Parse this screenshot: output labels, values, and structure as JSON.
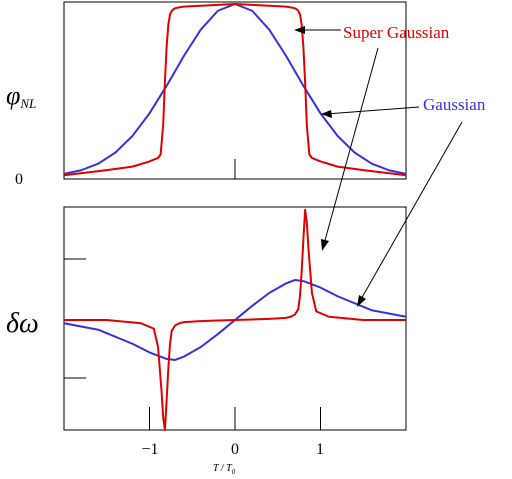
{
  "chart_data": [
    {
      "type": "line",
      "ylabel": "φNL",
      "ylabel_main": "φ",
      "ylabel_sub": "NL",
      "y_tick_labels": [
        "0"
      ],
      "xlim": [
        -2,
        2
      ],
      "ylim": [
        0,
        1.0
      ],
      "grid": false,
      "series": [
        {
          "name": "Super Gaussian",
          "color": "#e00000",
          "x": [
            -2.0,
            -1.5,
            -1.2,
            -1.0,
            -0.9,
            -0.87,
            -0.84,
            -0.82,
            -0.8,
            -0.78,
            -0.76,
            -0.74,
            -0.72,
            -0.7,
            -0.66,
            -0.6,
            -0.4,
            -0.2,
            0.0,
            0.2,
            0.4,
            0.6,
            0.66,
            0.7,
            0.72,
            0.74,
            0.76,
            0.78,
            0.8,
            0.82,
            0.84,
            0.87,
            0.9,
            1.0,
            1.2,
            1.5,
            2.0
          ],
          "y": [
            0.01,
            0.04,
            0.06,
            0.09,
            0.11,
            0.13,
            0.3,
            0.55,
            0.75,
            0.88,
            0.94,
            0.96,
            0.97,
            0.975,
            0.98,
            0.985,
            0.99,
            0.995,
            1.0,
            0.995,
            0.99,
            0.985,
            0.98,
            0.975,
            0.97,
            0.96,
            0.94,
            0.88,
            0.75,
            0.55,
            0.3,
            0.13,
            0.11,
            0.09,
            0.06,
            0.04,
            0.01
          ]
        },
        {
          "name": "Gaussian",
          "color": "#3333dd",
          "x": [
            -2.0,
            -1.8,
            -1.6,
            -1.4,
            -1.2,
            -1.0,
            -0.8,
            -0.6,
            -0.4,
            -0.2,
            0.0,
            0.2,
            0.4,
            0.6,
            0.8,
            1.0,
            1.2,
            1.4,
            1.6,
            1.8,
            2.0
          ],
          "y": [
            0.018,
            0.039,
            0.077,
            0.141,
            0.237,
            0.368,
            0.527,
            0.698,
            0.852,
            0.961,
            1.0,
            0.961,
            0.852,
            0.698,
            0.527,
            0.368,
            0.237,
            0.141,
            0.077,
            0.039,
            0.018
          ]
        }
      ]
    },
    {
      "type": "line",
      "ylabel": "δω",
      "xlabel": "T / T0",
      "xlabel_main": "T / T",
      "xlabel_sub": "0",
      "x_tick_labels": [
        "−1",
        "0",
        "1"
      ],
      "x_ticks": [
        -1,
        0,
        1
      ],
      "xlim": [
        -2,
        2
      ],
      "ylim": [
        -1.0,
        1.0
      ],
      "grid": false,
      "series": [
        {
          "name": "Super Gaussian",
          "color": "#e00000",
          "x": [
            -2.0,
            -1.5,
            -1.1,
            -0.95,
            -0.9,
            -0.86,
            -0.84,
            -0.82,
            -0.8,
            -0.78,
            -0.76,
            -0.74,
            -0.7,
            -0.65,
            -0.6,
            -0.4,
            -0.2,
            0.0,
            0.2,
            0.4,
            0.6,
            0.65,
            0.7,
            0.74,
            0.76,
            0.78,
            0.8,
            0.82,
            0.84,
            0.86,
            0.9,
            0.95,
            1.1,
            1.5,
            2.0
          ],
          "y": [
            0.0,
            0.0,
            -0.03,
            -0.08,
            -0.25,
            -0.65,
            -0.9,
            -1.02,
            -0.75,
            -0.45,
            -0.22,
            -0.1,
            -0.05,
            -0.03,
            -0.02,
            -0.01,
            -0.005,
            0.0,
            0.005,
            0.01,
            0.02,
            0.03,
            0.05,
            0.1,
            0.22,
            0.45,
            0.75,
            1.02,
            0.9,
            0.65,
            0.25,
            0.08,
            0.03,
            0.0,
            0.0
          ]
        },
        {
          "name": "Gaussian",
          "color": "#3333dd",
          "x": [
            -2.0,
            -1.6,
            -1.2,
            -1.0,
            -0.8,
            -0.7,
            -0.6,
            -0.4,
            -0.2,
            0.0,
            0.2,
            0.4,
            0.6,
            0.7,
            0.8,
            1.0,
            1.2,
            1.6,
            2.0
          ],
          "y": [
            -0.03,
            -0.09,
            -0.22,
            -0.3,
            -0.36,
            -0.37,
            -0.34,
            -0.25,
            -0.13,
            0.0,
            0.13,
            0.25,
            0.34,
            0.37,
            0.36,
            0.3,
            0.22,
            0.09,
            0.03
          ]
        }
      ]
    }
  ],
  "annotations": {
    "super_gaussian": "Super Gaussian",
    "gaussian": "Gaussian"
  }
}
